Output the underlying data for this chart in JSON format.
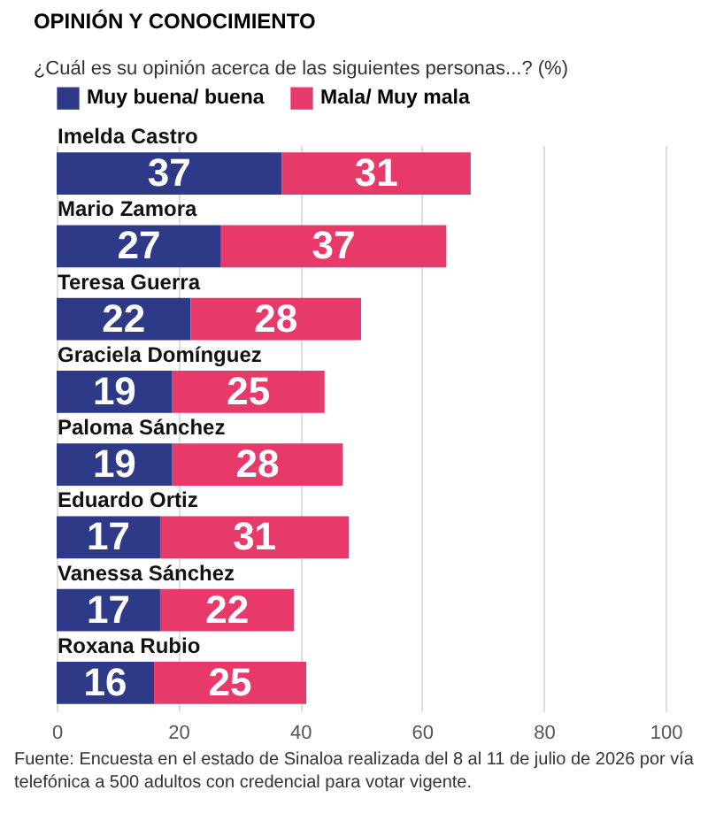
{
  "chart_data": {
    "type": "bar",
    "orientation": "horizontal",
    "stacked": true,
    "title": "OPINIÓN Y CONOCIMIENTO",
    "subtitle": "¿Cuál es su opinión acerca de las siguientes personas...? (%)",
    "categories": [
      "Imelda Castro",
      "Mario Zamora",
      "Teresa Guerra",
      "Graciela Domínguez",
      "Paloma Sánchez",
      "Eduardo Ortiz",
      "Vanessa Sánchez",
      "Roxana Rubio"
    ],
    "series": [
      {
        "name": "Muy buena/ buena",
        "color": "#2e3a87",
        "values": [
          37,
          27,
          22,
          19,
          19,
          17,
          17,
          16
        ]
      },
      {
        "name": "Mala/ Muy mala",
        "color": "#e8396b",
        "values": [
          31,
          37,
          28,
          25,
          28,
          31,
          22,
          25
        ]
      }
    ],
    "xlim": [
      0,
      100
    ],
    "xticks": [
      0,
      20,
      40,
      60,
      80,
      100
    ],
    "grid": "x",
    "legend": "top left",
    "data_labels": true,
    "annotations": [
      "Fuente: Encuesta en el estado de Sinaloa realizada del 8 al 11 de julio de 2026 por vía telefónica a 500 adultos con credencial para votar vigente."
    ]
  }
}
